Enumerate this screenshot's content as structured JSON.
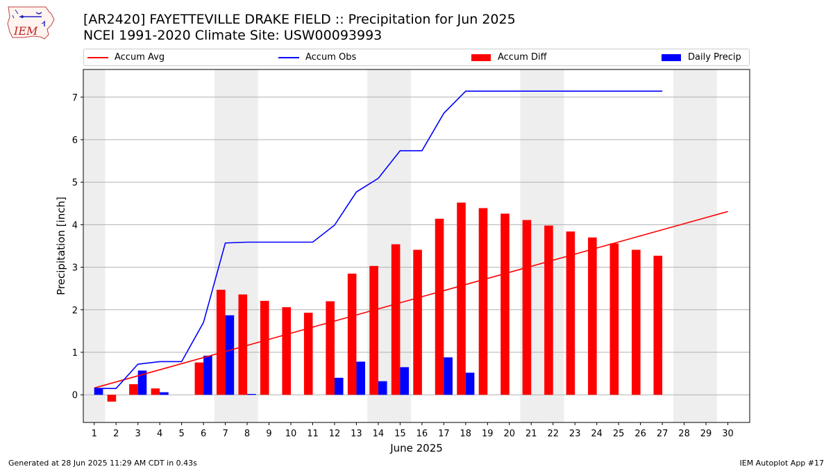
{
  "header": {
    "title_line1": "[AR2420] FAYETTEVILLE DRAKE FIELD :: Precipitation for Jun 2025",
    "title_line2": "NCEI 1991-2020 Climate Site: USW00093993",
    "logo_text": "IEM"
  },
  "legend": {
    "accum_avg": "Accum Avg",
    "accum_obs": "Accum Obs",
    "accum_diff": "Accum Diff",
    "daily_precip": "Daily Precip"
  },
  "footer": {
    "generated": "Generated at 28 Jun 2025 11:29 AM CDT in 0.43s",
    "app": "IEM Autoplot App #17"
  },
  "colors": {
    "accum_avg": "#ff0000",
    "accum_obs": "#0000ff",
    "accum_diff": "#ff0000",
    "daily_precip": "#0000ff",
    "weekend_shade": "#eeeeee",
    "grid": "#b0b0b0"
  },
  "chart_data": {
    "type": "bar",
    "xlabel": "June 2025",
    "ylabel": "Precipitation [inch]",
    "xlim": [
      0.5,
      31
    ],
    "ylim": [
      -0.65,
      7.65
    ],
    "yticks": [
      0,
      1,
      2,
      3,
      4,
      5,
      6,
      7
    ],
    "days": [
      1,
      2,
      3,
      4,
      5,
      6,
      7,
      8,
      9,
      10,
      11,
      12,
      13,
      14,
      15,
      16,
      17,
      18,
      19,
      20,
      21,
      22,
      23,
      24,
      25,
      26,
      27,
      28,
      29,
      30
    ],
    "weekend_spans": [
      [
        0.5,
        1.5
      ],
      [
        6.5,
        8.5
      ],
      [
        13.5,
        15.5
      ],
      [
        20.5,
        22.5
      ],
      [
        27.5,
        29.5
      ]
    ],
    "grid": "horizontal",
    "series": [
      {
        "name": "Accum Avg",
        "kind": "line",
        "x": [
          1,
          30
        ],
        "values": [
          0.16,
          4.31
        ]
      },
      {
        "name": "Accum Obs",
        "kind": "line",
        "x": [
          1,
          2,
          3,
          4,
          5,
          6,
          7,
          8,
          9,
          10,
          11,
          12,
          13,
          14,
          15,
          16,
          17,
          18,
          19,
          20,
          21,
          22,
          23,
          24,
          25,
          26,
          27
        ],
        "values": [
          0.15,
          0.15,
          0.72,
          0.78,
          0.78,
          1.7,
          3.57,
          3.59,
          3.59,
          3.59,
          3.59,
          3.99,
          4.77,
          5.09,
          5.74,
          5.74,
          6.62,
          7.14,
          7.14,
          7.14,
          7.14,
          7.14,
          7.14,
          7.14,
          7.14,
          7.14,
          7.14
        ]
      },
      {
        "name": "Accum Diff",
        "kind": "bar",
        "x": [
          1,
          2,
          3,
          4,
          5,
          6,
          7,
          8,
          9,
          10,
          11,
          12,
          13,
          14,
          15,
          16,
          17,
          18,
          19,
          20,
          21,
          22,
          23,
          24,
          25,
          26,
          27
        ],
        "values": [
          0.0,
          -0.16,
          0.25,
          0.15,
          0.0,
          0.76,
          2.47,
          2.36,
          2.21,
          2.06,
          1.93,
          2.2,
          2.85,
          3.03,
          3.54,
          3.41,
          4.14,
          4.52,
          4.39,
          4.26,
          4.11,
          3.98,
          3.84,
          3.7,
          3.56,
          3.41,
          3.27
        ]
      },
      {
        "name": "Daily Precip",
        "kind": "bar",
        "x": [
          1,
          2,
          3,
          4,
          5,
          6,
          7,
          8,
          9,
          10,
          11,
          12,
          13,
          14,
          15,
          16,
          17,
          18,
          19,
          20,
          21,
          22,
          23,
          24,
          25,
          26,
          27
        ],
        "values": [
          0.15,
          0.0,
          0.57,
          0.06,
          0.0,
          0.92,
          1.87,
          0.02,
          0.0,
          0.0,
          0.0,
          0.4,
          0.78,
          0.32,
          0.65,
          0.0,
          0.88,
          0.52,
          0.0,
          0.0,
          0.0,
          0.0,
          0.0,
          0.0,
          0.0,
          0.0,
          0.0
        ]
      }
    ]
  }
}
